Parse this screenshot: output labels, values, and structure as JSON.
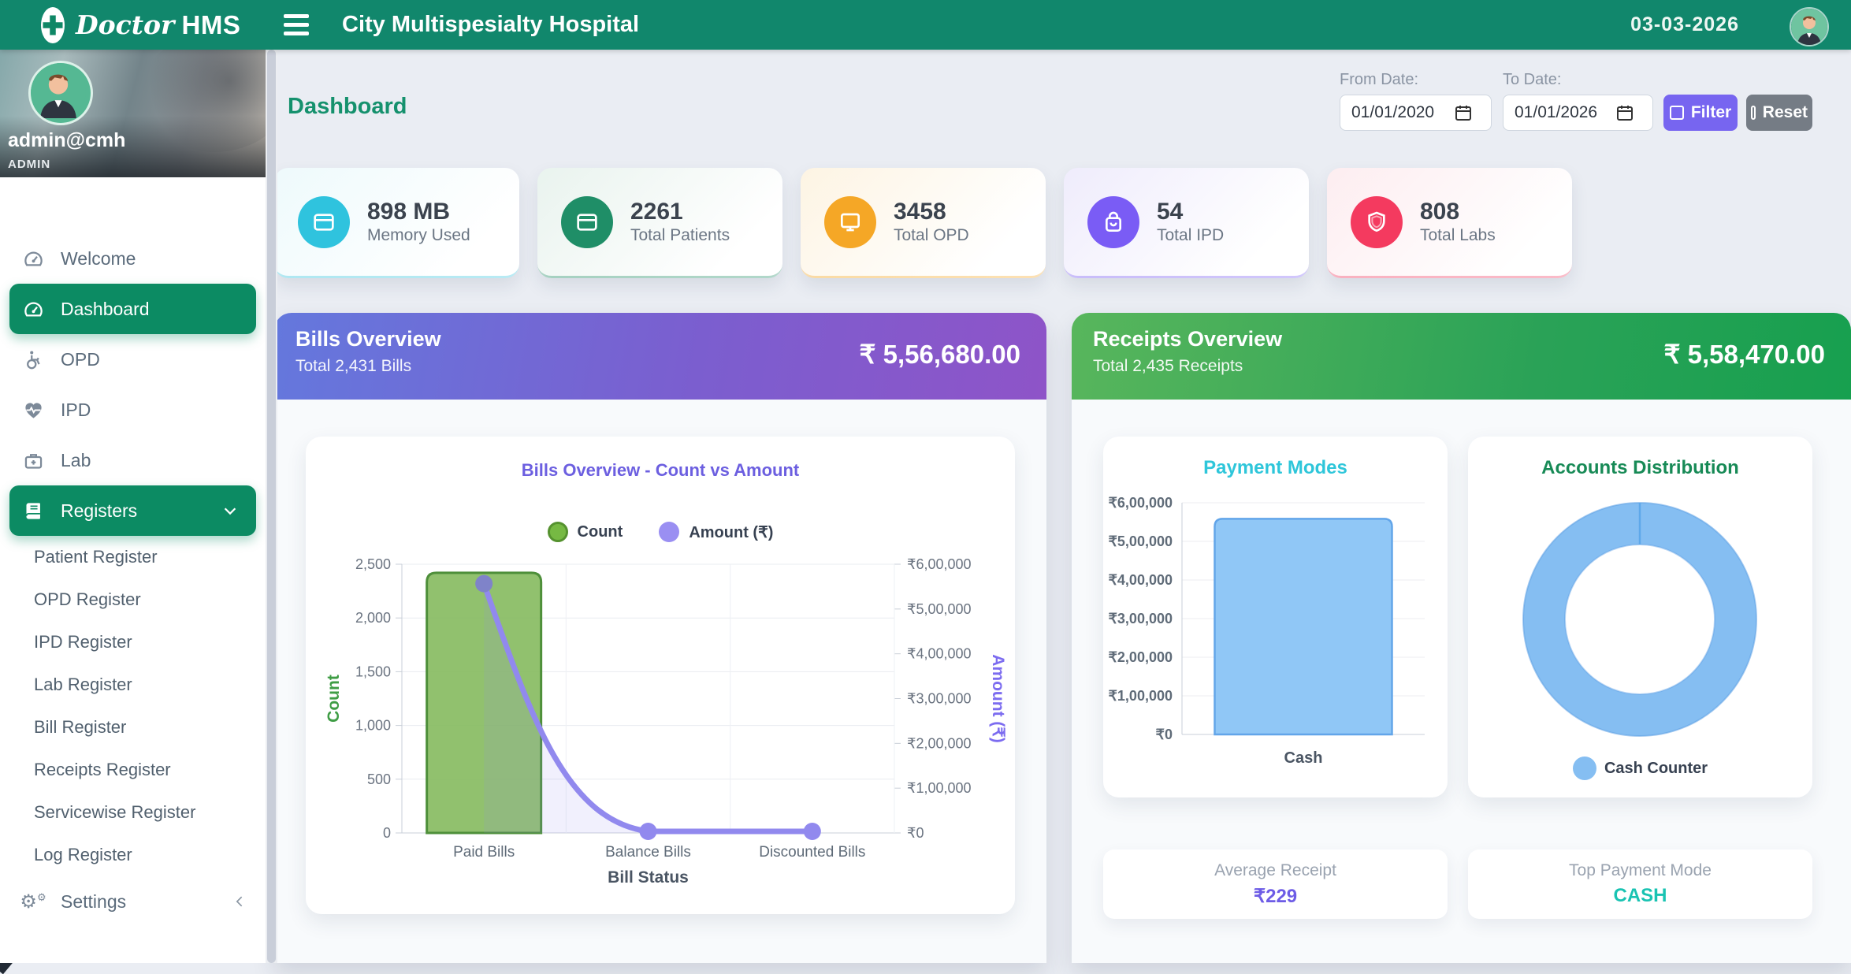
{
  "header": {
    "brand_prefix": "Doctor",
    "brand_suffix": "HMS",
    "hospital": "City Multispesialty Hospital",
    "date": "03-03-2026"
  },
  "page": {
    "title": "Dashboard"
  },
  "filters": {
    "from_label": "From Date:",
    "from_value": "01/01/2020",
    "to_label": "To Date:",
    "to_value": "01/01/2026",
    "filter_label": "Filter",
    "reset_label": "Reset"
  },
  "sidebar": {
    "profile": {
      "name": "admin@cmh",
      "role": "ADMIN"
    },
    "items": [
      {
        "label": "Welcome",
        "icon": "gauge-icon",
        "active": false,
        "expandable": false
      },
      {
        "label": "Dashboard",
        "icon": "gauge-icon",
        "active": true,
        "expandable": false
      },
      {
        "label": "OPD",
        "icon": "wheelchair-icon",
        "active": false,
        "expandable": false
      },
      {
        "label": "IPD",
        "icon": "heart-pulse-icon",
        "active": false,
        "expandable": false
      },
      {
        "label": "Lab",
        "icon": "medical-kit-icon",
        "active": false,
        "expandable": false
      },
      {
        "label": "Registers",
        "icon": "book-icon",
        "active": true,
        "expandable": true
      }
    ],
    "subitems": [
      "Patient Register",
      "OPD Register",
      "IPD Register",
      "Lab Register",
      "Bill Register",
      "Receipts Register",
      "Servicewise Register",
      "Log Register"
    ],
    "settings": {
      "label": "Settings",
      "icon": "gears-icon"
    }
  },
  "stats": [
    {
      "value": "898 MB",
      "label": "Memory Used",
      "accent": "#2fc3de",
      "tint": "#eefafc",
      "icon": "window-icon"
    },
    {
      "value": "2261",
      "label": "Total Patients",
      "accent": "#1f8e67",
      "tint": "#e9f3ee",
      "icon": "window-icon"
    },
    {
      "value": "3458",
      "label": "Total OPD",
      "accent": "#f5a726",
      "tint": "#fdf4e3",
      "icon": "monitor-icon"
    },
    {
      "value": "54",
      "label": "Total IPD",
      "accent": "#7a5cf5",
      "tint": "#efecfc",
      "icon": "bag-icon"
    },
    {
      "value": "808",
      "label": "Total Labs",
      "accent": "#f43a5f",
      "tint": "#fdedf0",
      "icon": "shield-icon"
    }
  ],
  "bills": {
    "title": "Bills Overview",
    "subtitle": "Total 2,431 Bills",
    "amount": "₹ 5,56,680.00"
  },
  "receipts": {
    "title": "Receipts Overview",
    "subtitle": "Total 2,435 Receipts",
    "amount": "₹ 5,58,470.00",
    "average_receipt": {
      "label": "Average Receipt",
      "value": "₹229"
    },
    "top_payment": {
      "label": "Top Payment Mode",
      "value": "CASH"
    }
  },
  "chart_data": [
    {
      "id": "bills_combo",
      "type": "bar",
      "title": "Bills Overview - Count vs Amount",
      "categories": [
        "Paid Bills",
        "Balance Bills",
        "Discounted Bills"
      ],
      "series": [
        {
          "name": "Count",
          "kind": "bar",
          "axis": "left",
          "color": "#82b85a",
          "stroke": "#4e8f3a",
          "values": [
            2420,
            0,
            0
          ]
        },
        {
          "name": "Amount (₹)",
          "kind": "line",
          "axis": "right",
          "color": "#9189ee",
          "values": [
            556680,
            0,
            0
          ]
        }
      ],
      "xlabel": "Bill Status",
      "left_axis": {
        "label": "Count",
        "min": 0,
        "max": 2500,
        "step": 500,
        "color": "#3f9d45"
      },
      "right_axis": {
        "label": "Amount (₹)",
        "min": 0,
        "max": 600000,
        "step": 100000,
        "color": "#7c6cf0"
      },
      "grid": true,
      "legend_position": "top"
    },
    {
      "id": "payment_modes",
      "type": "bar",
      "title": "Payment Modes",
      "categories": [
        "Cash"
      ],
      "values": [
        558470
      ],
      "ylim": [
        0,
        600000
      ],
      "step": 100000,
      "color": "#90c7f6",
      "stroke": "#62a5e9",
      "grid": true
    },
    {
      "id": "accounts_distribution",
      "type": "pie",
      "title": "Accounts Distribution",
      "slices": [
        {
          "label": "Cash Counter",
          "value": 100,
          "color": "#85bef2"
        }
      ],
      "legend_position": "bottom"
    }
  ]
}
